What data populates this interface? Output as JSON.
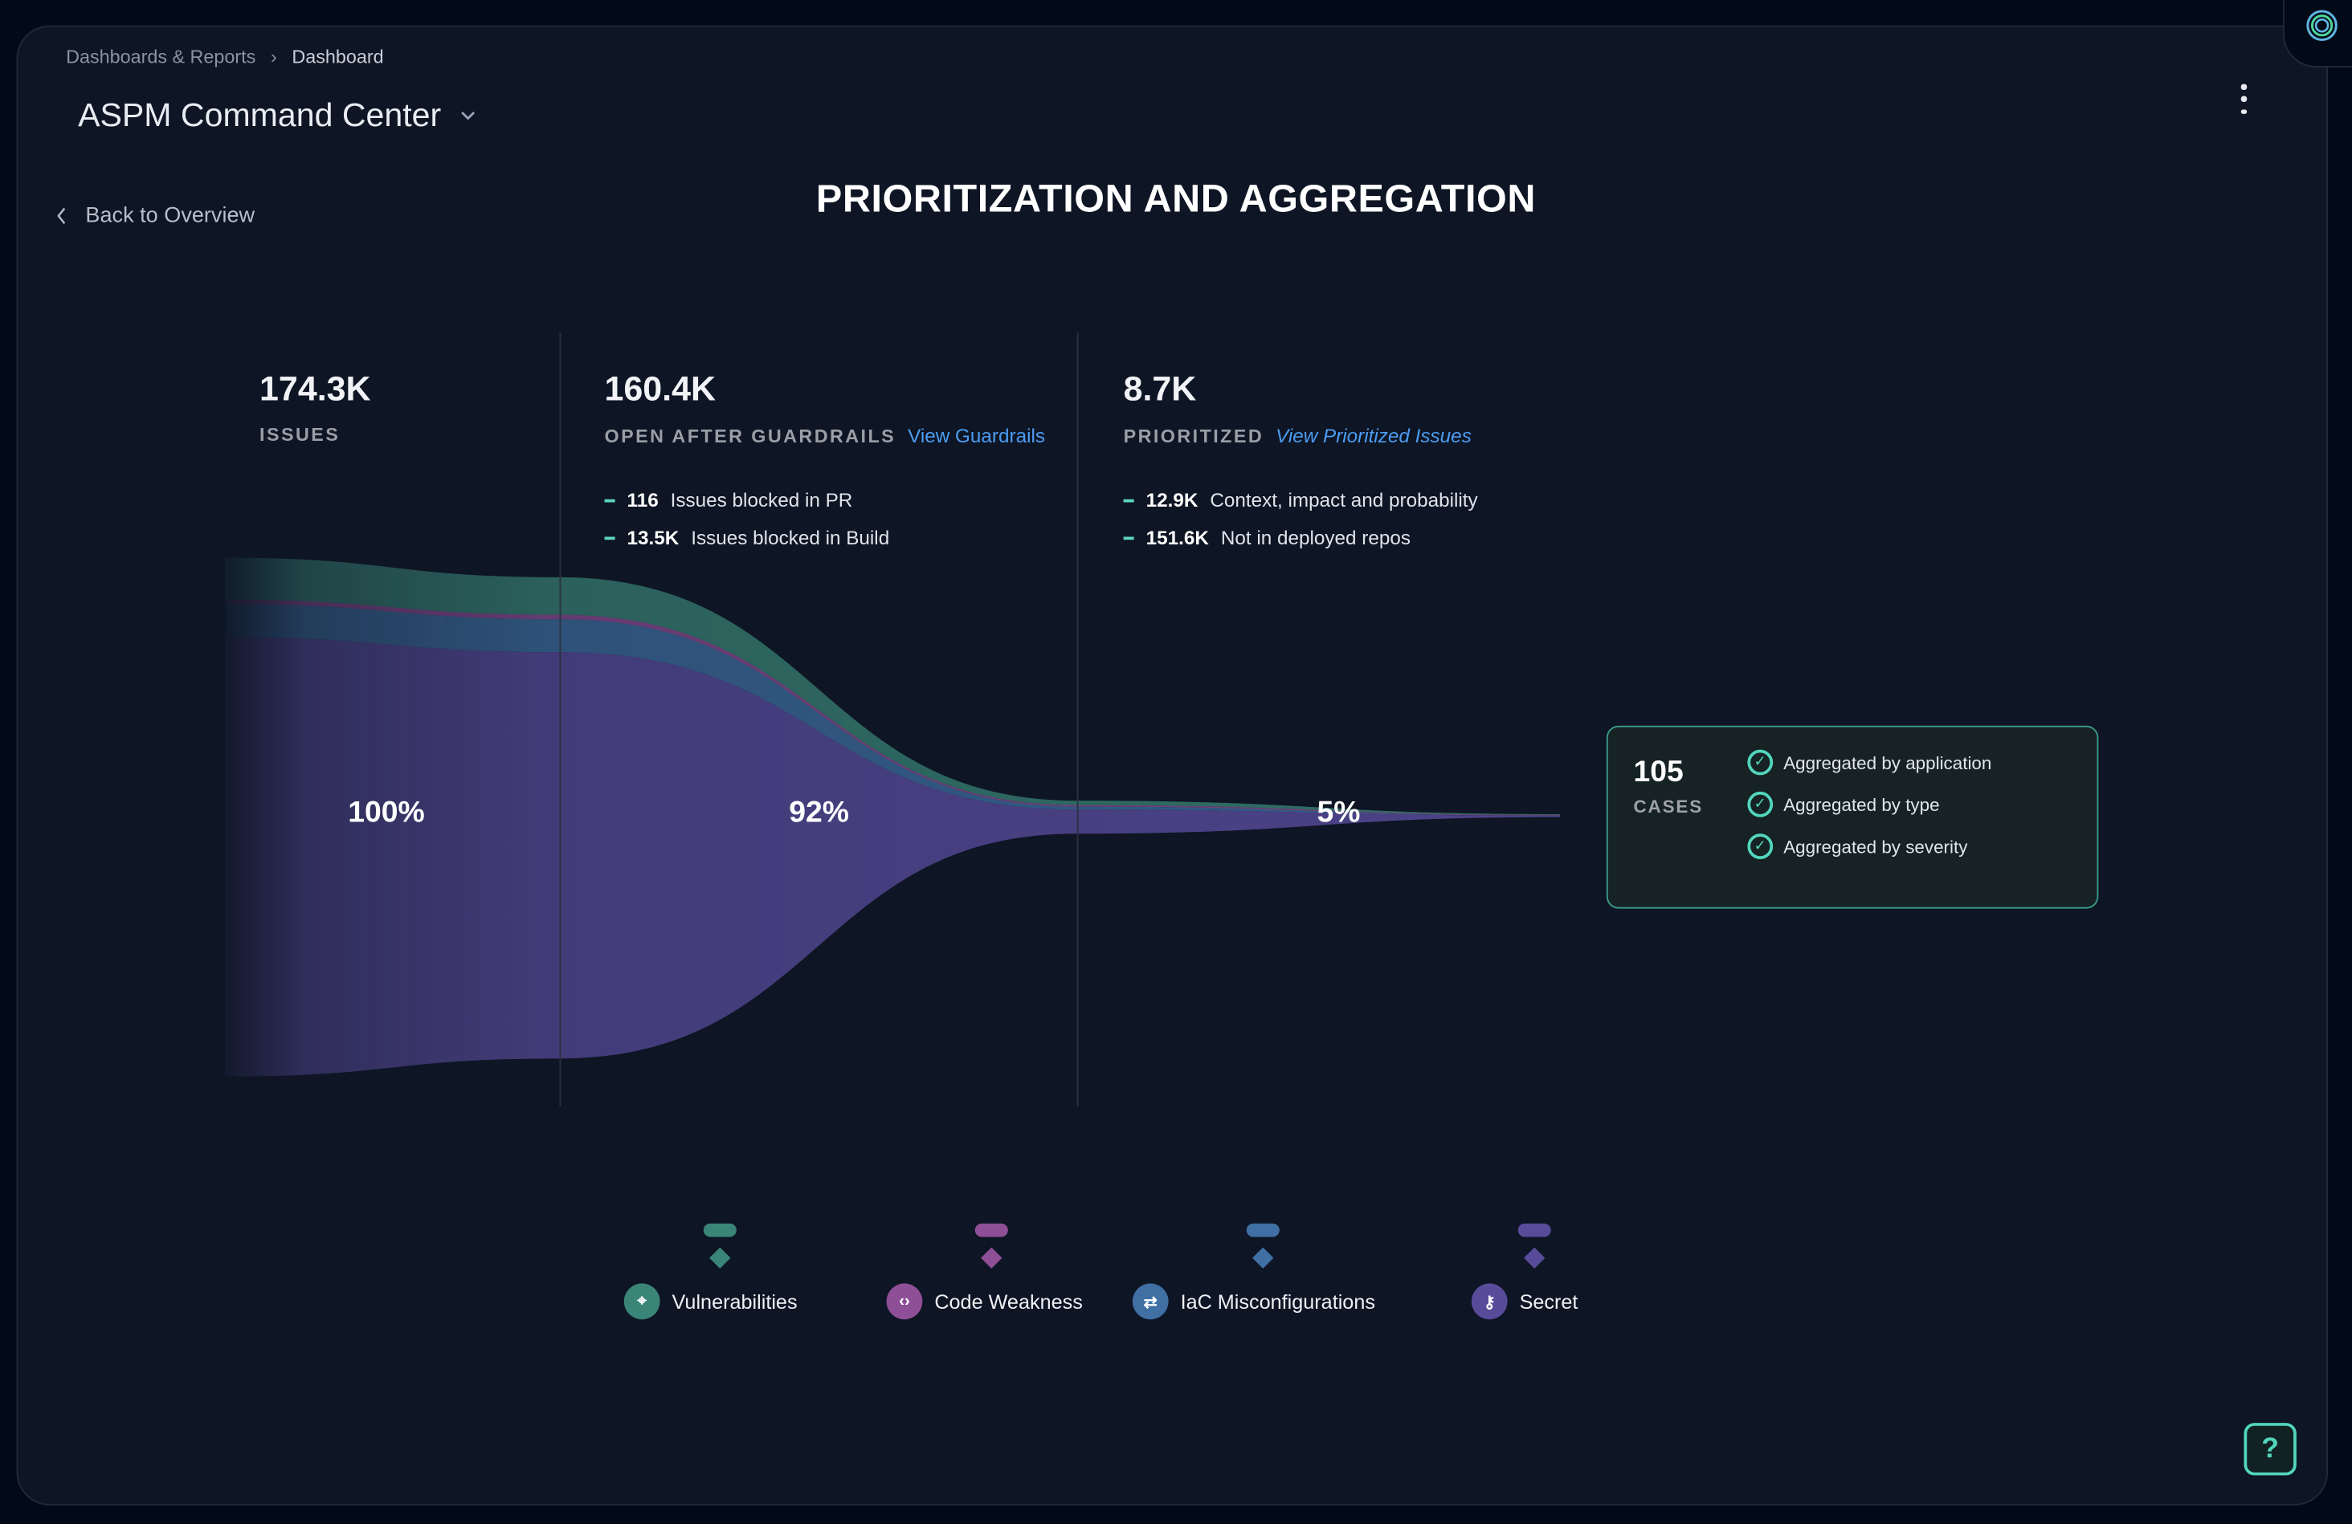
{
  "breadcrumb": {
    "parent": "Dashboards & Reports",
    "current": "Dashboard"
  },
  "header": {
    "title": "ASPM Command Center",
    "menu_icon": "kebab-icon"
  },
  "back_link": "Back to Overview",
  "heading": "PRIORITIZATION AND AGGREGATION",
  "stages": [
    {
      "value": "174.3K",
      "label": "ISSUES",
      "percent": "100%"
    },
    {
      "value": "160.4K",
      "label": "OPEN AFTER GUARDRAILS",
      "link": "View Guardrails",
      "percent": "92%",
      "details": [
        {
          "value": "116",
          "text": "Issues blocked in PR"
        },
        {
          "value": "13.5K",
          "text": "Issues blocked in Build"
        }
      ]
    },
    {
      "value": "8.7K",
      "label": "PRIORITIZED",
      "link": "View Prioritized Issues",
      "percent": "5%",
      "details": [
        {
          "value": "12.9K",
          "text": "Context, impact and probability"
        },
        {
          "value": "151.6K",
          "text": "Not in deployed repos"
        }
      ]
    }
  ],
  "cases": {
    "value": "105",
    "label": "CASES",
    "items": [
      "Aggregated by application",
      "Aggregated by type",
      "Aggregated by severity"
    ]
  },
  "legend": [
    {
      "label": "Vulnerabilities",
      "icon": "target-icon",
      "color": "#3a8577"
    },
    {
      "label": "Code Weakness",
      "icon": "code-icon",
      "color": "#8e4f96"
    },
    {
      "label": "IaC Misconfigurations",
      "icon": "sliders-icon",
      "color": "#3f6fa3"
    },
    {
      "label": "Secret",
      "icon": "key-icon",
      "color": "#574b9a"
    }
  ],
  "help": "?"
}
